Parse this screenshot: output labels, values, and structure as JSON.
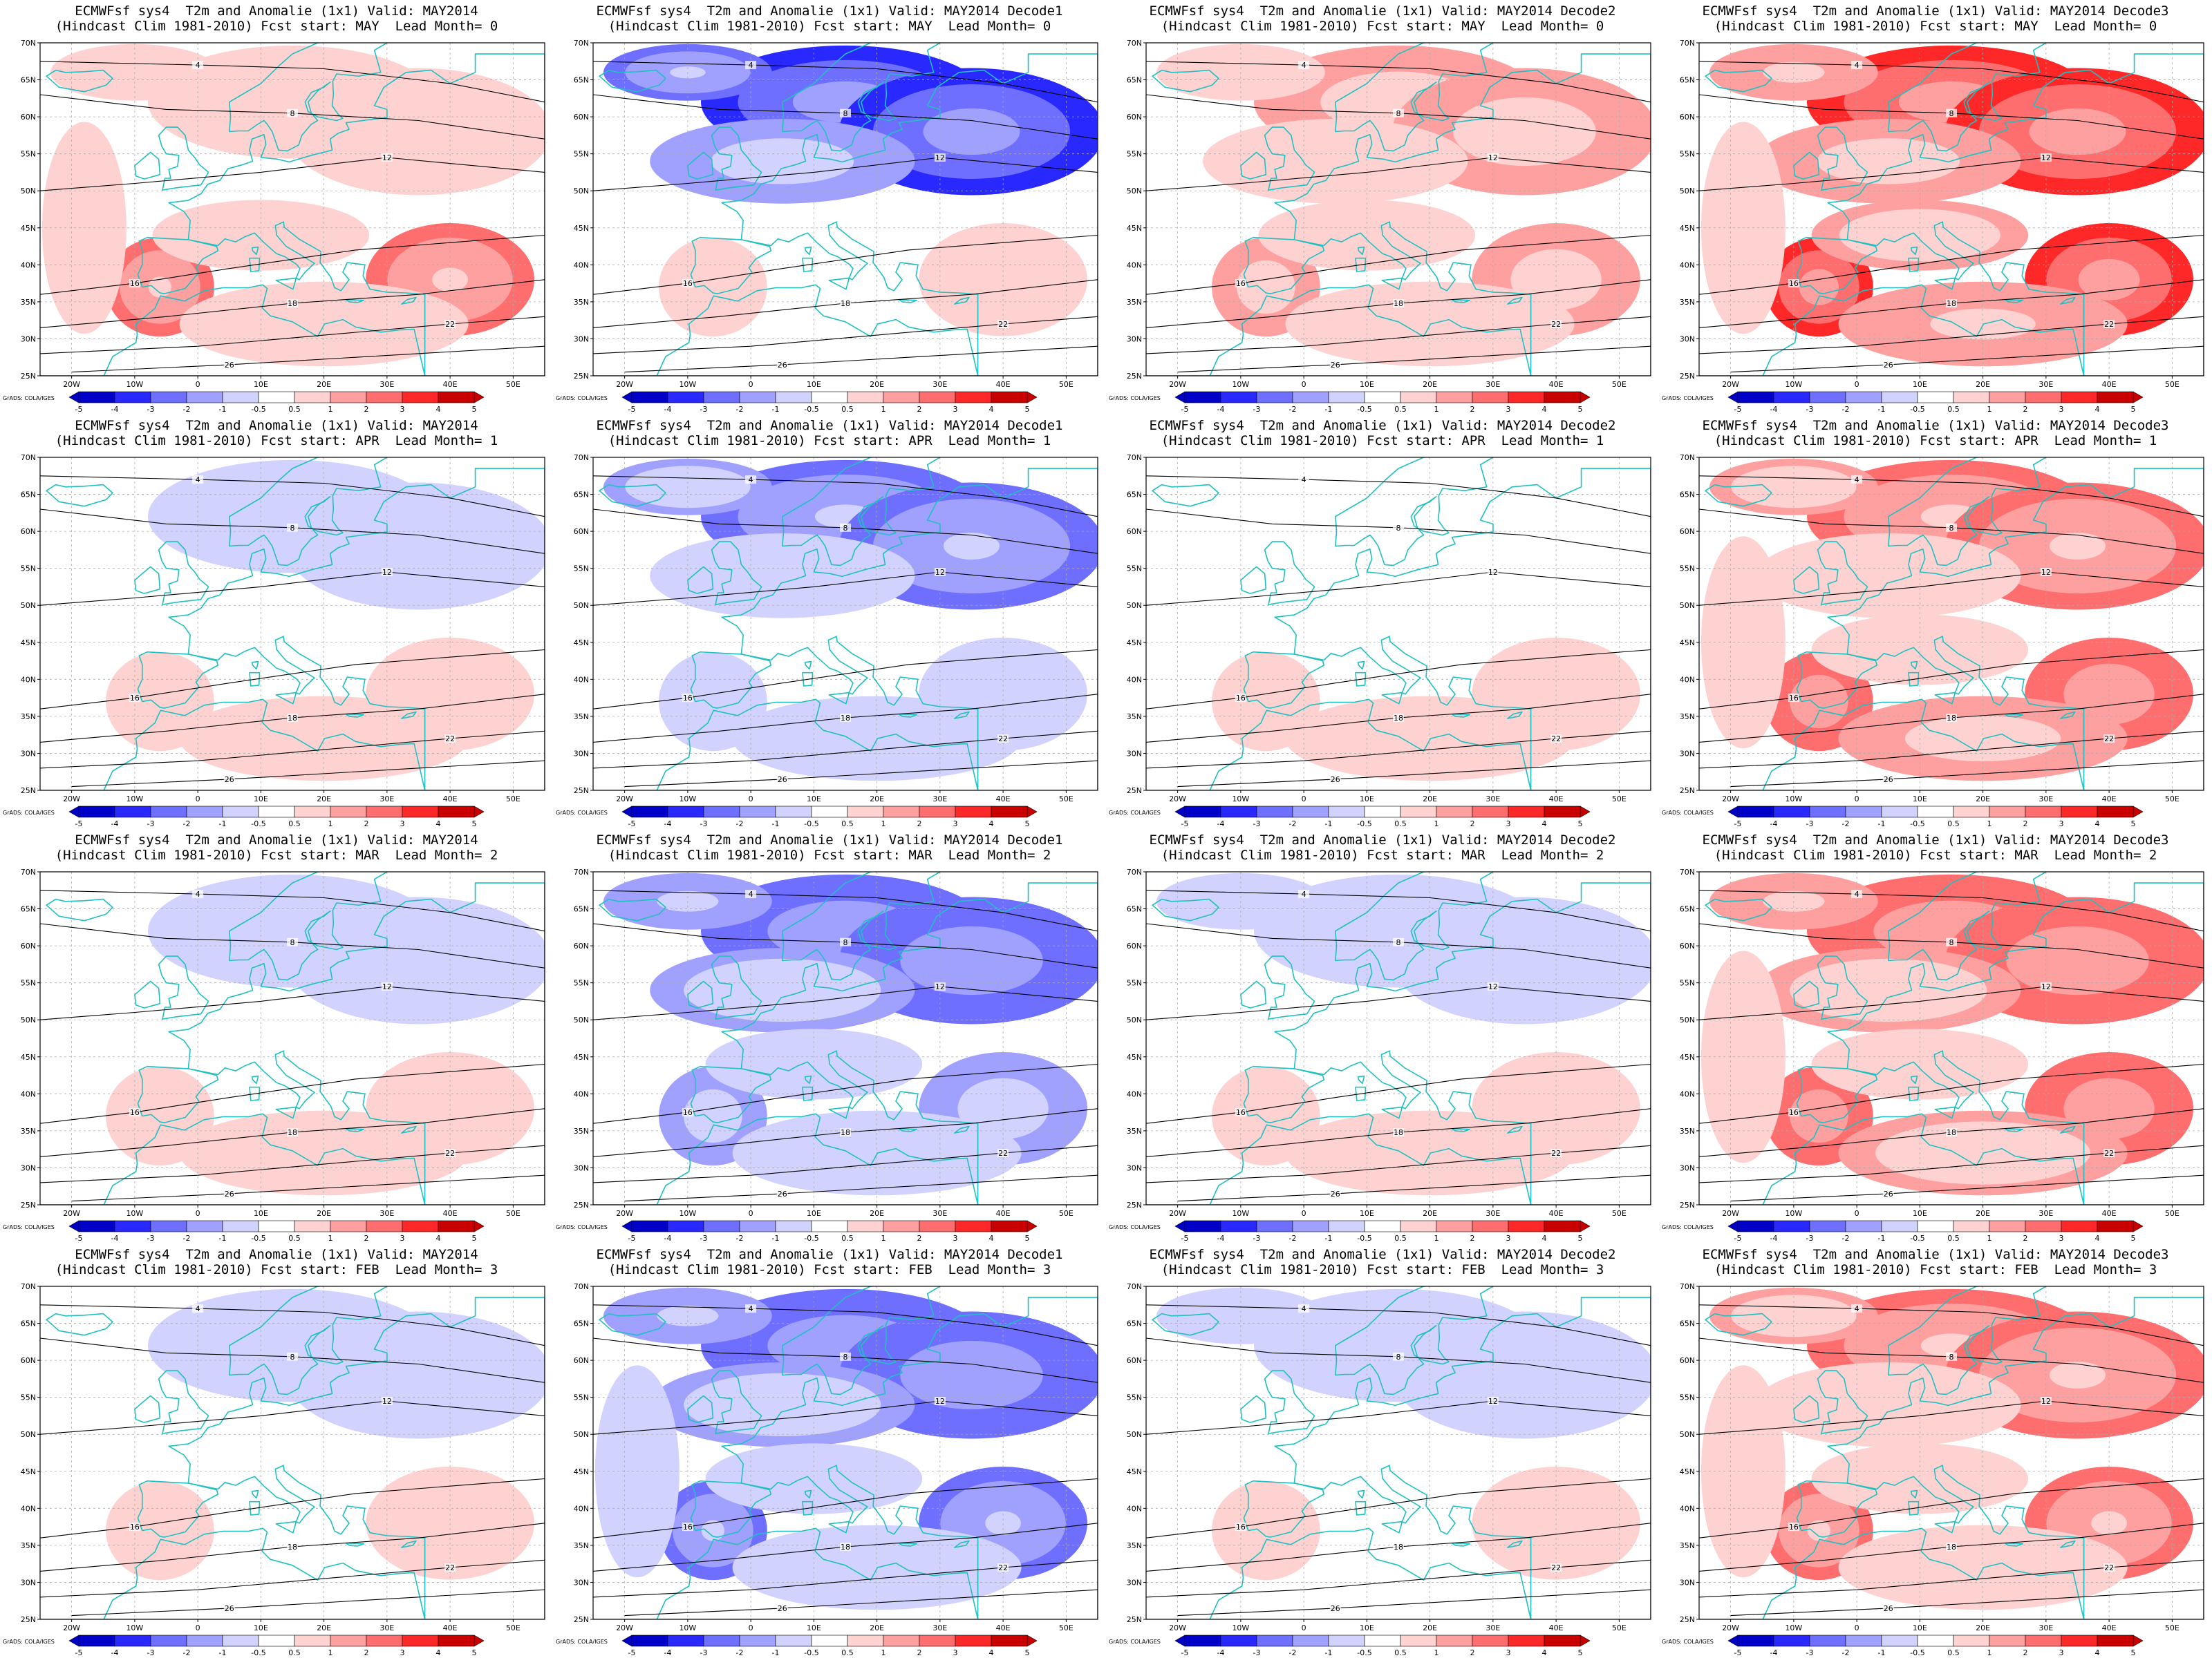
{
  "figure": {
    "credit": "GrADS: COLA/IGES",
    "lon_ticks": [
      "20W",
      "10W",
      "0",
      "10E",
      "20E",
      "30E",
      "40E",
      "50E"
    ],
    "lat_ticks": [
      "25N",
      "30N",
      "35N",
      "40N",
      "45N",
      "50N",
      "55N",
      "60N",
      "65N",
      "70N"
    ],
    "colorbar_labels": [
      "-5",
      "-4",
      "-3",
      "-2",
      "-1",
      "-0.5",
      "0.5",
      "1",
      "2",
      "3",
      "4",
      "5"
    ],
    "colors": {
      "strong_blue": "#0000c8",
      "blue": "#2828ff",
      "mid_blue": "#6e6eff",
      "light_blue": "#a0a0ff",
      "pale_blue": "#d2d2ff",
      "white": "#ffffff",
      "pale_red": "#ffd2d2",
      "light_red": "#ffa0a0",
      "mid_red": "#ff6e6e",
      "red": "#ff2828",
      "strong_red": "#c80000",
      "coast": "#20c0c0",
      "contour": "#000000"
    }
  },
  "panels": [
    {
      "title1": "ECMWFsf sys4  T2m and Anomalie (1x1) Valid: MAY2014",
      "title2": "(Hindcast Clim 1981-2010) Fcst start: MAY  Lead Month= 0",
      "north": 0.25,
      "south": 0.6
    },
    {
      "title1": "ECMWFsf sys4  T2m and Anomalie (1x1) Valid: MAY2014 Decode1",
      "title2": "(Hindcast Clim 1981-2010) Fcst start: MAY  Lead Month= 0",
      "north": -0.85,
      "south": 0.2
    },
    {
      "title1": "ECMWFsf sys4  T2m and Anomalie (1x1) Valid: MAY2014 Decode2",
      "title2": "(Hindcast Clim 1981-2010) Fcst start: MAY  Lead Month= 0",
      "north": 0.45,
      "south": 0.45
    },
    {
      "title1": "ECMWFsf sys4  T2m and Anomalie (1x1) Valid: MAY2014 Decode3",
      "title2": "(Hindcast Clim 1981-2010) Fcst start: MAY  Lead Month= 0",
      "north": 0.8,
      "south": 0.85
    },
    {
      "title1": "ECMWFsf sys4  T2m and Anomalie (1x1) Valid: MAY2014",
      "title2": "(Hindcast Clim 1981-2010) Fcst start: APR  Lead Month= 1",
      "north": -0.2,
      "south": 0.3
    },
    {
      "title1": "ECMWFsf sys4  T2m and Anomalie (1x1) Valid: MAY2014 Decode1",
      "title2": "(Hindcast Clim 1981-2010) Fcst start: APR  Lead Month= 1",
      "north": -0.6,
      "south": -0.3
    },
    {
      "title1": "ECMWFsf sys4  T2m and Anomalie (1x1) Valid: MAY2014 Decode2",
      "title2": "(Hindcast Clim 1981-2010) Fcst start: APR  Lead Month= 1",
      "north": -0.15,
      "south": 0.35
    },
    {
      "title1": "ECMWFsf sys4  T2m and Anomalie (1x1) Valid: MAY2014 Decode3",
      "title2": "(Hindcast Clim 1981-2010) Fcst start: APR  Lead Month= 1",
      "north": 0.6,
      "south": 0.75
    },
    {
      "title1": "ECMWFsf sys4  T2m and Anomalie (1x1) Valid: MAY2014",
      "title2": "(Hindcast Clim 1981-2010) Fcst start: MAR  Lead Month= 2",
      "north": -0.2,
      "south": 0.3
    },
    {
      "title1": "ECMWFsf sys4  T2m and Anomalie (1x1) Valid: MAY2014 Decode1",
      "title2": "(Hindcast Clim 1981-2010) Fcst start: MAR  Lead Month= 2",
      "north": -0.75,
      "south": -0.45
    },
    {
      "title1": "ECMWFsf sys4  T2m and Anomalie (1x1) Valid: MAY2014 Decode2",
      "title2": "(Hindcast Clim 1981-2010) Fcst start: MAR  Lead Month= 2",
      "north": -0.25,
      "south": 0.3
    },
    {
      "title1": "ECMWFsf sys4  T2m and Anomalie (1x1) Valid: MAY2014 Decode3",
      "title2": "(Hindcast Clim 1981-2010) Fcst start: MAR  Lead Month= 2",
      "north": 0.75,
      "south": 0.7
    },
    {
      "title1": "ECMWFsf sys4  T2m and Anomalie (1x1) Valid: MAY2014",
      "title2": "(Hindcast Clim 1981-2010) Fcst start: FEB  Lead Month= 3",
      "north": -0.2,
      "south": 0.2
    },
    {
      "title1": "ECMWFsf sys4  T2m and Anomalie (1x1) Valid: MAY2014 Decode1",
      "title2": "(Hindcast Clim 1981-2010) Fcst start: FEB  Lead Month= 3",
      "north": -0.75,
      "south": -0.6
    },
    {
      "title1": "ECMWFsf sys4  T2m and Anomalie (1x1) Valid: MAY2014 Decode2",
      "title2": "(Hindcast Clim 1981-2010) Fcst start: FEB  Lead Month= 3",
      "north": -0.25,
      "south": 0.2
    },
    {
      "title1": "ECMWFsf sys4  T2m and Anomalie (1x1) Valid: MAY2014 Decode3",
      "title2": "(Hindcast Clim 1981-2010) Fcst start: FEB  Lead Month= 3",
      "north": 0.6,
      "south": 0.6
    }
  ]
}
